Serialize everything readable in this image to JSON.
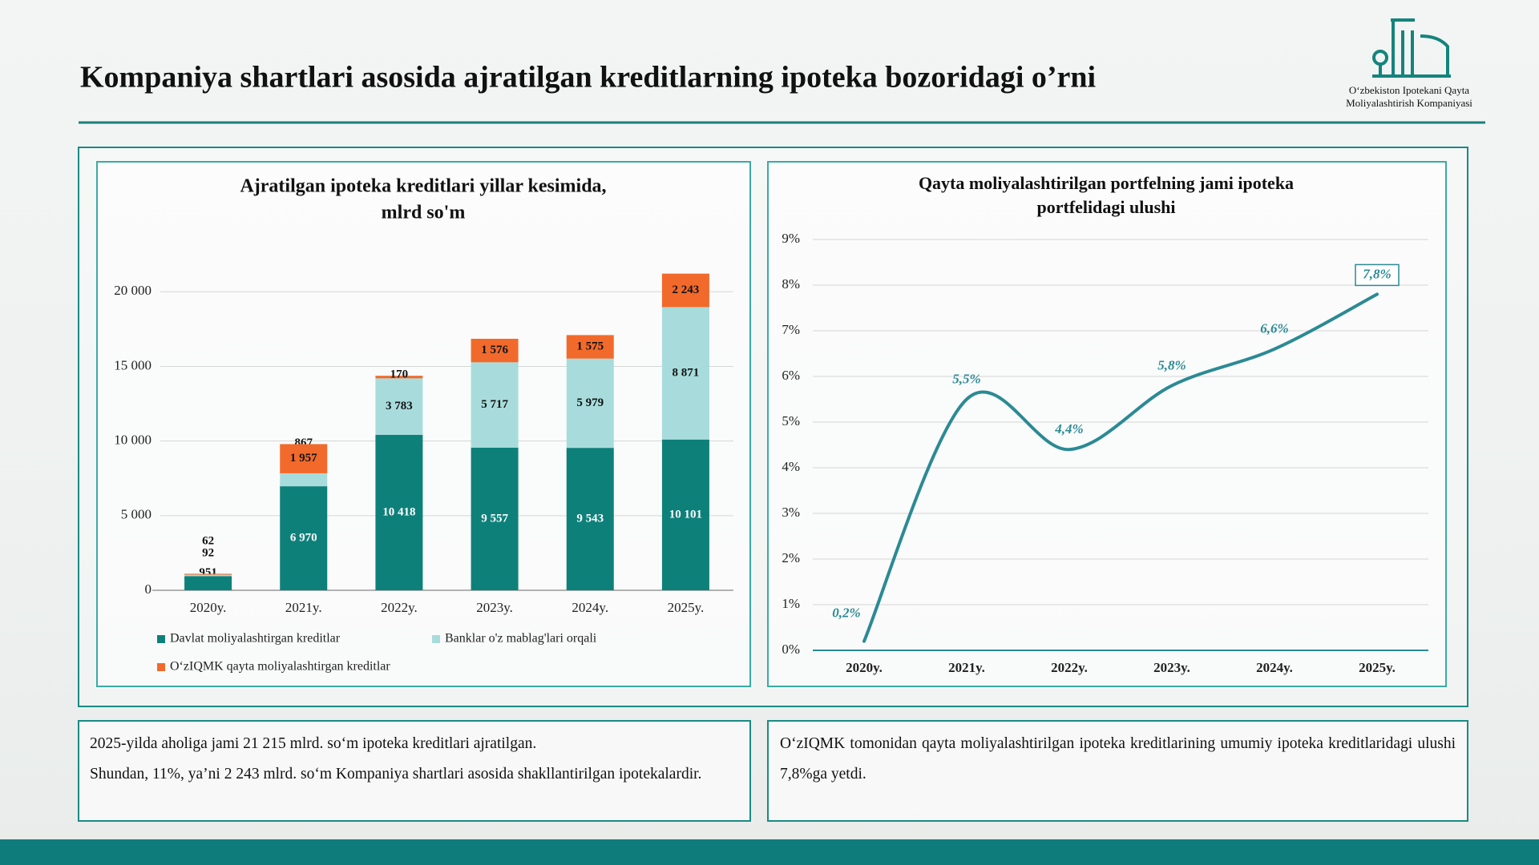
{
  "header": {
    "title": "Kompaniya shartlari asosida ajratilgan kreditlarning ipoteka bozoridagi o’rni",
    "logo_text": [
      "O‘zbekiston Ipotekani Qayta",
      "Moliyalashtirish Kompaniyasi"
    ]
  },
  "chart_data": [
    {
      "type": "bar",
      "stacked": true,
      "title": [
        "Ajratilgan ipoteka kreditlari yillar kesimida,",
        "mlrd so'm"
      ],
      "categories": [
        "2020y.",
        "2021y.",
        "2022y.",
        "2023y.",
        "2024y.",
        "2025y."
      ],
      "series": [
        {
          "name": "Davlat moliyalashtirgan kreditlar",
          "color": "#0e807a",
          "values": [
            951,
            6970,
            10418,
            9557,
            9543,
            10101
          ],
          "value_labels": [
            "951",
            "6 970",
            "10 418",
            "9 557",
            "9 543",
            "10 101"
          ]
        },
        {
          "name": "Banklar o'z mablag'lari orqali",
          "color": "#a8dcdc",
          "values": [
            92,
            867,
            3783,
            5717,
            5979,
            8871
          ],
          "value_labels": [
            "92",
            "867",
            "3 783",
            "5 717",
            "5 979",
            "8 871"
          ]
        },
        {
          "name": "O‘zIQMK qayta moliyalashtirgan kreditlar",
          "color": "#f26a2b",
          "values": [
            62,
            1957,
            170,
            1576,
            1575,
            2243
          ],
          "value_labels": [
            "62",
            "1 957",
            "170",
            "1 576",
            "1 575",
            "2 243"
          ]
        }
      ],
      "ylim": [
        0,
        22000
      ],
      "yticks": [
        0,
        {
          "value": 5000,
          "label": "5 000"
        },
        {
          "value": 10000,
          "label": "10 000"
        },
        {
          "value": 15000,
          "label": "15 000"
        },
        {
          "value": 20000,
          "label": "20 000"
        }
      ],
      "grid": true,
      "legend": "bottom"
    },
    {
      "type": "line",
      "title": [
        "Qayta moliyalashtirilgan portfelning jami ipoteka",
        "portfelidagi ulushi"
      ],
      "categories": [
        "2020y.",
        "2021y.",
        "2022y.",
        "2023y.",
        "2024y.",
        "2025y."
      ],
      "color": "#2b8a94",
      "values": [
        0.2,
        5.5,
        4.4,
        5.8,
        6.6,
        7.8
      ],
      "value_labels": [
        "0,2%",
        "5,5%",
        "4,4%",
        "5,8%",
        "6,6%",
        "7,8%"
      ],
      "ylim": [
        0,
        9
      ],
      "yticks": [
        {
          "value": 0,
          "label": "0%"
        },
        {
          "value": 1,
          "label": "1%"
        },
        {
          "value": 2,
          "label": "2%"
        },
        {
          "value": 3,
          "label": "3%"
        },
        {
          "value": 4,
          "label": "4%"
        },
        {
          "value": 5,
          "label": "5%"
        },
        {
          "value": 6,
          "label": "6%"
        },
        {
          "value": 7,
          "label": "7%"
        },
        {
          "value": 8,
          "label": "8%"
        },
        {
          "value": 9,
          "label": "9%"
        }
      ],
      "grid": true,
      "smooth": true
    }
  ],
  "notes": {
    "left": [
      "2025-yilda aholiga jami 21 215 mlrd. so‘m ipoteka kreditlari ajratilgan.",
      "Shundan, 11%, ya’ni 2 243 mlrd. so‘m Kompaniya shartlari asosida shakllantirilgan ipotekalardir."
    ],
    "right": [
      "O‘zIQMK tomonidan qayta moliyalashtirilgan ipoteka kreditlarining umumiy ipoteka kreditlaridagi ulushi 7,8%ga yetdi."
    ]
  }
}
